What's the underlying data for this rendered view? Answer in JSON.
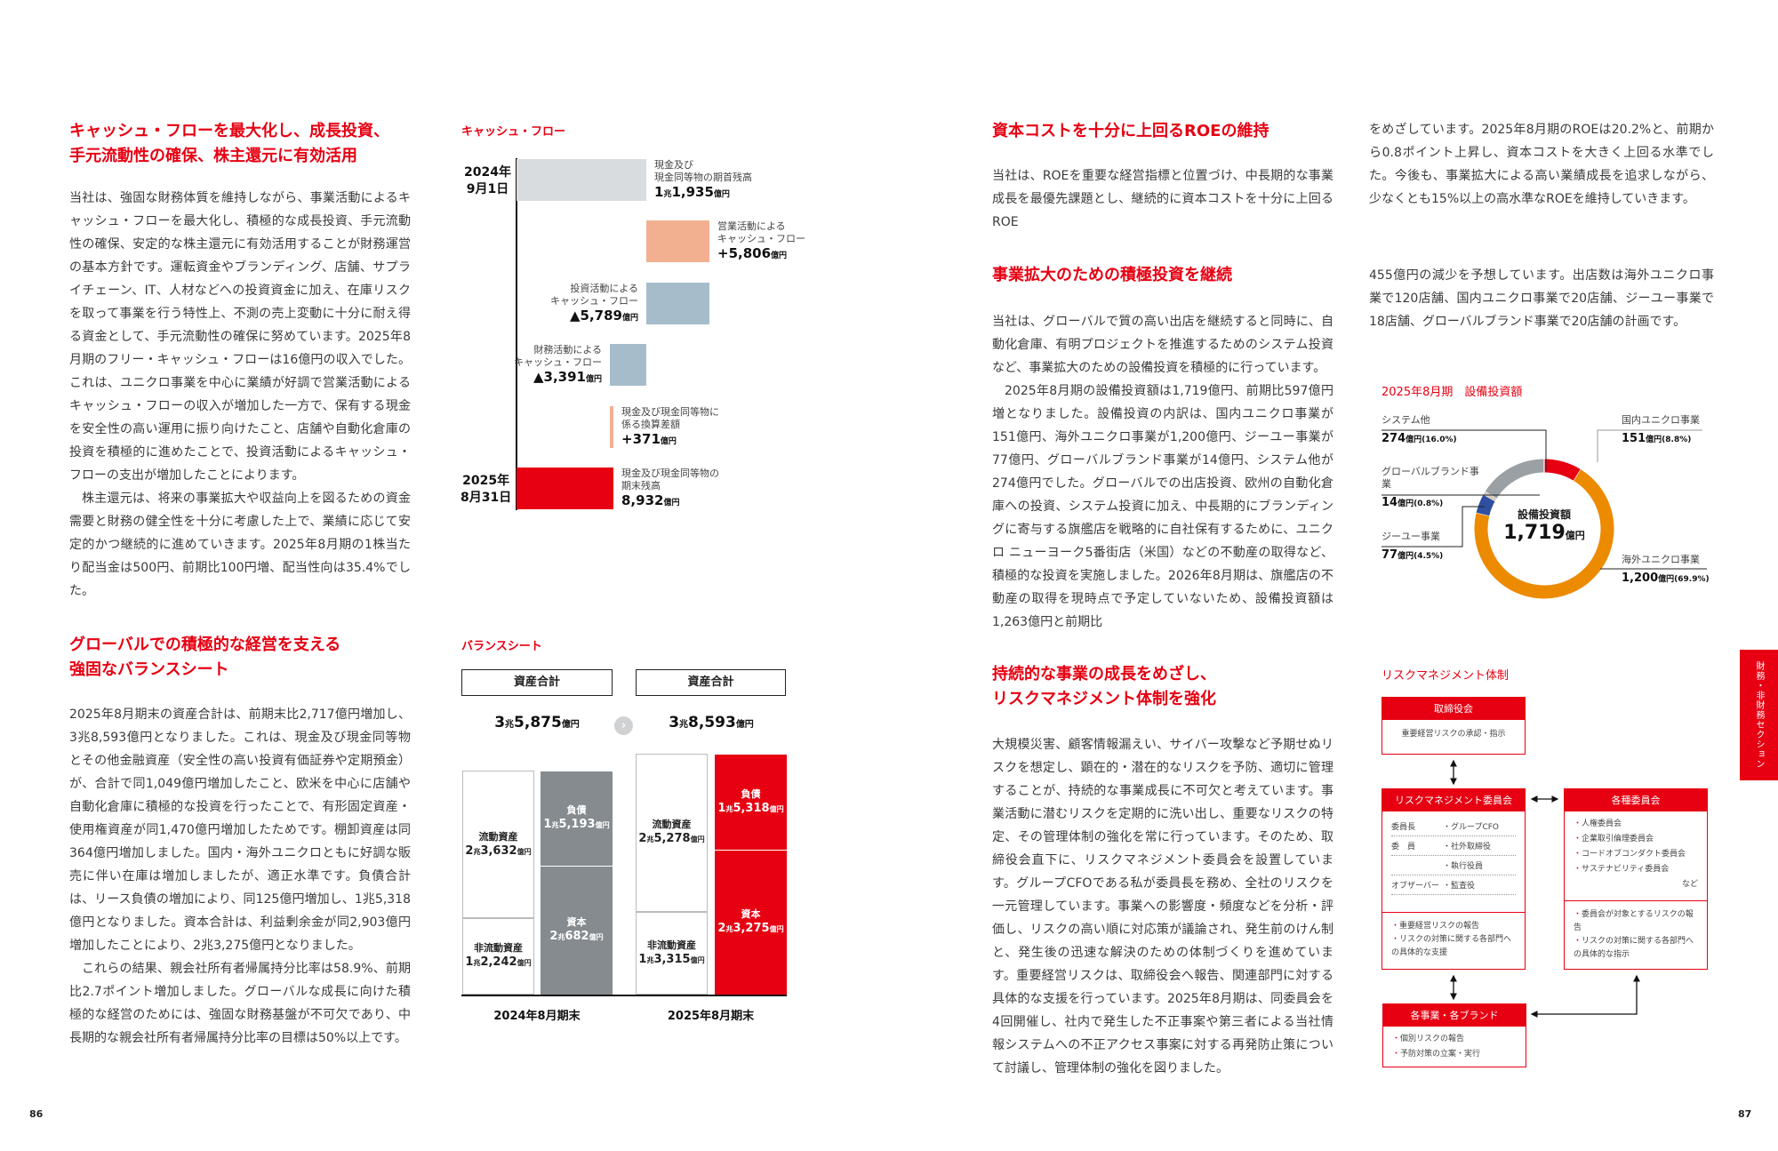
{
  "left_page": {
    "page_number": "86",
    "cashflow_section": {
      "heading_line1": "キャッシュ・フローを最大化し、成長投資、",
      "heading_line2": "手元流動性の確保、株主還元に有効活用",
      "paragraph1": "当社は、強固な財務体質を維持しながら、事業活動によるキャッシュ・フローを最大化し、積極的な成長投資、手元流動性の確保、安定的な株主還元に有効活用することが財務運営の基本方針です。運転資金やブランディング、店舗、サプライチェーン、IT、人材などへの投資資金に加え、在庫リスクを取って事業を行う特性上、不測の売上変動に十分に耐え得る資金として、手元流動性の確保に努めています。2025年8月期のフリー・キャッシュ・フローは16億円の収入でした。これは、ユニクロ事業を中心に業績が好調で営業活動によるキャッシュ・フローの収入が増加した一方で、保有する現金を安全性の高い運用に振り向けたこと、店舗や自動化倉庫の投資を積極的に進めたことで、投資活動によるキャッシュ・フローの支出が増加したことによります。",
      "paragraph2": "株主還元は、将来の事業拡大や収益向上を図るための資金需要と財務の健全性を十分に考慮した上で、業績に応じて安定的かつ継続的に進めていきます。2025年8月期の1株当たり配当金は500円、前期比100円増、配当性向は35.4%でした。"
    },
    "balance_section": {
      "heading_line1": "グローバルでの積極的な経営を支える",
      "heading_line2": "強固なバランスシート",
      "paragraph1": "2025年8月期末の資産合計は、前期末比2,717億円増加し、3兆8,593億円となりました。これは、現金及び現金同等物とその他金融資産（安全性の高い投資有価証券や定期預金）が、合計で同1,049億円増加したこと、欧米を中心に店舗や自動化倉庫に積極的な投資を行ったことで、有形固定資産・使用権資産が同1,470億円増加したためです。棚卸資産は同364億円増加しました。国内・海外ユニクロともに好調な販売に伴い在庫は増加しましたが、適正水準です。負債合計は、リース負債の増加により、同125億円増加し、1兆5,318億円となりました。資本合計は、利益剰余金が同2,903億円増加したことにより、2兆3,275億円となりました。",
      "paragraph2": "これらの結果、親会社所有者帰属持分比率は58.9%、前期比2.7ポイント増加しました。グローバルな成長に向けた積極的な経営のためには、強固な財務基盤が不可欠であり、中長期的な親会社所有者帰属持分比率の目標は50%以上です。"
    }
  },
  "chart_data": [
    {
      "type": "waterfall",
      "title": "キャッシュ・フロー",
      "unit": "億円",
      "start_label": [
        "2024年",
        "9月1日"
      ],
      "end_label": [
        "2025年",
        "8月31日"
      ],
      "steps": [
        {
          "label": [
            "現金及び",
            "現金同等物の期首残高"
          ],
          "value": 11935,
          "display_big": "1",
          "display_mid": "兆",
          "display_num": "1,935",
          "unit": "億円",
          "kind": "start",
          "color": "#d9dcdf"
        },
        {
          "label": [
            "営業活動による",
            "キャッシュ・フロー"
          ],
          "value": 5806,
          "display_num": "+5,806",
          "unit": "億円",
          "kind": "increase",
          "color": "#f2b091"
        },
        {
          "label": [
            "投資活動による",
            "キャッシュ・フロー"
          ],
          "value": -5789,
          "display_num": "▲5,789",
          "unit": "億円",
          "kind": "decrease",
          "color": "#a6bccb"
        },
        {
          "label": [
            "財務活動による",
            "キャッシュ・フロー"
          ],
          "value": -3391,
          "display_num": "▲3,391",
          "unit": "億円",
          "kind": "decrease",
          "color": "#a6bccb"
        },
        {
          "label": [
            "現金及び現金同等物に",
            "係る換算差額"
          ],
          "value": 371,
          "display_num": "+371",
          "unit": "億円",
          "kind": "increase",
          "color": "#f2b091"
        },
        {
          "label": [
            "現金及び現金同等物の",
            "期末残高"
          ],
          "value": 8932,
          "display_num": "8,932",
          "unit": "億円",
          "kind": "end",
          "color": "#e60012"
        }
      ]
    },
    {
      "type": "stacked-bar",
      "title": "バランスシート",
      "unit": "億円",
      "total_box_label": "資産合計",
      "periods": [
        {
          "label": "2024年8月期末",
          "total": {
            "big": "3",
            "mid": "兆",
            "num": "5,875",
            "unit": "億円",
            "value": 35875
          },
          "assets": [
            {
              "name": "流動資産",
              "big": "2",
              "num": "3,632",
              "value": 23632
            },
            {
              "name": "非流動資産",
              "big": "1",
              "num": "2,242",
              "value": 12242
            }
          ],
          "liab_equity": [
            {
              "name": "負債",
              "big": "1",
              "num": "5,193",
              "value": 15193
            },
            {
              "name": "資本",
              "big": "2",
              "num": "682",
              "value": 20682
            }
          ],
          "color": "#858b8f"
        },
        {
          "label": "2025年8月期末",
          "total": {
            "big": "3",
            "mid": "兆",
            "num": "8,593",
            "unit": "億円",
            "value": 38593
          },
          "assets": [
            {
              "name": "流動資産",
              "big": "2",
              "num": "5,278",
              "value": 25278
            },
            {
              "name": "非流動資産",
              "big": "1",
              "num": "3,315",
              "value": 13315
            }
          ],
          "liab_equity": [
            {
              "name": "負債",
              "big": "1",
              "num": "5,318",
              "value": 15318
            },
            {
              "name": "資本",
              "big": "2",
              "num": "3,275",
              "value": 23275
            }
          ],
          "color": "#e60012"
        }
      ],
      "trillion": "兆",
      "unit_short": "億円"
    },
    {
      "type": "pie",
      "donut": true,
      "title": "2025年8月期　設備投資額",
      "center_label": "設備投資額",
      "center_value": "1,719",
      "center_unit": "億円",
      "slices": [
        {
          "name": "国内ユニクロ事業",
          "value": 151,
          "percent": 8.8,
          "value_text": "151",
          "pct_text": "(8.8%)",
          "color": "#e60012"
        },
        {
          "name": "海外ユニクロ事業",
          "value": 1200,
          "percent": 69.9,
          "value_text": "1,200",
          "pct_text": "(69.9%)",
          "color": "#ec8a00"
        },
        {
          "name": "ジーユー事業",
          "value": 77,
          "percent": 4.5,
          "value_text": "77",
          "pct_text": "(4.5%)",
          "color": "#2f4f9f"
        },
        {
          "name": "グローバルブランド事業",
          "value": 14,
          "percent": 0.8,
          "value_text": "14",
          "pct_text": "(0.8%)",
          "color": "#d8c6b4"
        },
        {
          "name": "システム他",
          "value": 274,
          "percent": 16.0,
          "value_text": "274",
          "pct_text": "(16.0%)",
          "color": "#9aa0a4"
        }
      ],
      "unit": "億円"
    }
  ],
  "right_page": {
    "page_number": "87",
    "side_tab": "財務・非財務セクション",
    "roe_section": {
      "heading": "資本コストを十分に上回るROEの維持",
      "text_part1": "当社は、ROEを重要な経営指標と位置づけ、中長期的な事業成長を最優先課題とし、継続的に資本コストを十分に上回るROE",
      "text_part2": "をめざしています。2025年8月期のROEは20.2%と、前期から0.8ポイント上昇し、資本コストを大きく上回る水準でした。今後も、事業拡大による高い業績成長を追求しながら、少なくとも15%以上の高水準なROEを維持していきます。"
    },
    "capex_section": {
      "heading": "事業拡大のための積極投資を継続",
      "paragraph1": "当社は、グローバルで質の高い出店を継続すると同時に、自動化倉庫、有明プロジェクトを推進するためのシステム投資など、事業拡大のための設備投資を積極的に行っています。",
      "paragraph2": "2025年8月期の設備投資額は1,719億円、前期比597億円増となりました。設備投資の内訳は、国内ユニクロ事業が151億円、海外ユニクロ事業が1,200億円、ジーユー事業が77億円、グローバルブランド事業が14億円、システム他が274億円でした。グローバルでの出店投資、欧州の自動化倉庫への投資、システム投資に加え、中長期的にブランディングに寄与する旗艦店を戦略的に自社保有するために、ユニクロ ニューヨーク5番街店（米国）などの不動産の取得など、積極的な投資を実施しました。2026年8月期は、旗艦店の不動産の取得を現時点で予定していないため、設備投資額は1,263億円と前期比",
      "paragraph2_cont": "455億円の減少を予想しています。出店数は海外ユニクロ事業で120店舗、国内ユニクロ事業で20店舗、ジーユー事業で18店舗、グローバルブランド事業で20店舗の計画です。"
    },
    "risk_section": {
      "heading_line1": "持続的な事業の成長をめざし、",
      "heading_line2": "リスクマネジメント体制を強化",
      "paragraph": "大規模災害、顧客情報漏えい、サイバー攻撃など予期せぬリスクを想定し、顕在的・潜在的なリスクを予防、適切に管理することが、持続的な事業成長に不可欠と考えています。事業活動に潜むリスクを定期的に洗い出し、重要なリスクの特定、その管理体制の強化を常に行っています。そのため、取締役会直下に、リスクマネジメント委員会を設置しています。グループCFOである私が委員長を務め、全社のリスクを一元管理しています。事業への影響度・頻度などを分析・評価し、リスクの高い順に対応策が議論され、発生前のけん制と、発生後の迅速な解決のための体制づくりを進めています。重要経営リスクは、取締役会へ報告、関連部門に対する具体的な支援を行っています。2025年8月期は、同委員会を4回開催し、社内で発生した不正事案や第三者による当社情報システムへの不正アクセス事案に対する再発防止策について討議し、管理体制の強化を図りました。",
      "diagram": {
        "title": "リスクマネジメント体制",
        "board": {
          "title": "取締役会",
          "text": "重要経営リスクの承認・指示"
        },
        "rm_committee": {
          "title": "リスクマネジメント委員会",
          "members": [
            {
              "role": "委員長",
              "name": "・グループCFO"
            },
            {
              "role": "委　員",
              "name": "・社外取締役"
            },
            {
              "role": "",
              "name": "・執行役員"
            },
            {
              "role": "オブザーバー",
              "name": "・監査役"
            }
          ],
          "duties": [
            "重要経営リスクの報告",
            "リスクの対策に関する各部門への具体的な支援"
          ]
        },
        "committees": {
          "title": "各種委員会",
          "items": [
            "人権委員会",
            "企業取引倫理委員会",
            "コードオブコンダクト委員会",
            "サステナビリティ委員会"
          ],
          "etc": "など",
          "duties": [
            "委員会が対象とするリスクの報告",
            "リスクの対策に関する各部門への具体的な指示"
          ]
        },
        "business": {
          "title": "各事業・各ブランド",
          "duties": [
            "個別リスクの報告",
            "予防対策の立案・実行"
          ]
        }
      }
    }
  }
}
